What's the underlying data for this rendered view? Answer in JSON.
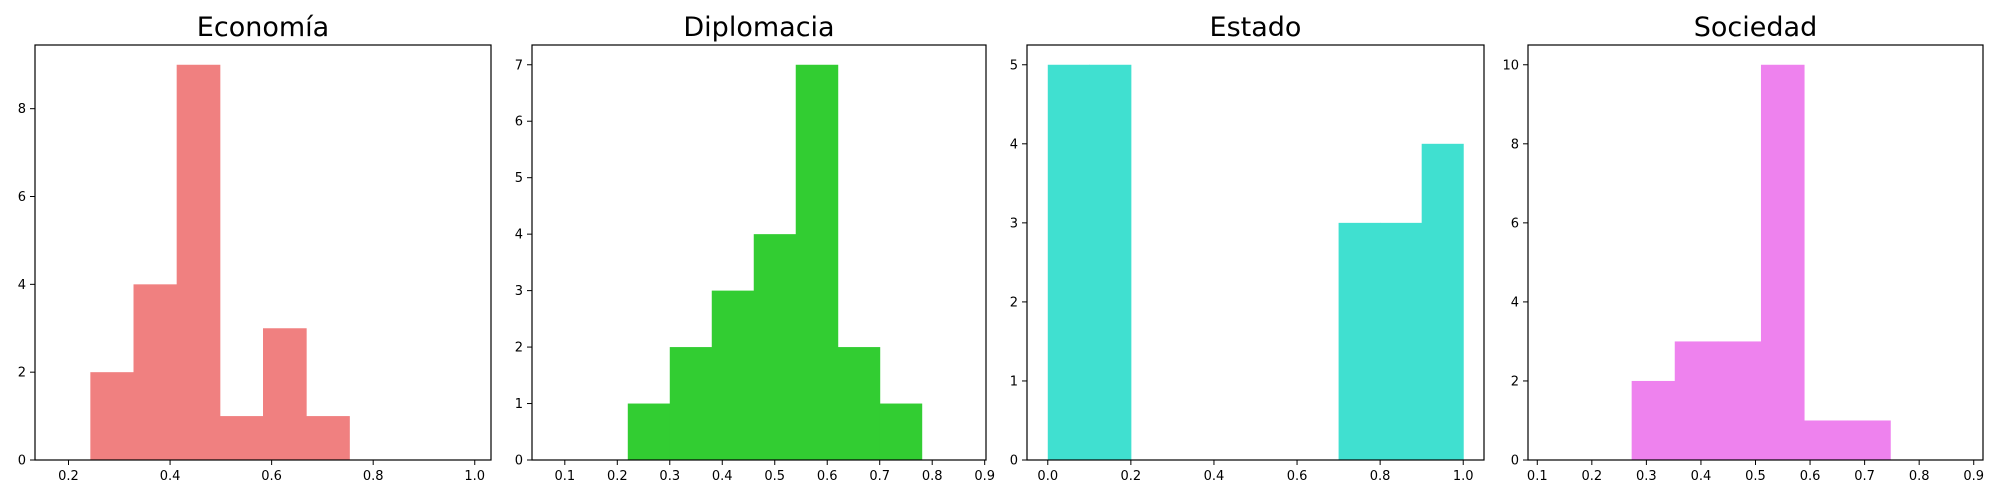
{
  "chart_data": [
    {
      "type": "histogram",
      "title": "Economía",
      "color": "#f08080",
      "xlim": [
        0.134,
        1.032
      ],
      "ylim": [
        0,
        9.45
      ],
      "xticks": [
        0.2,
        0.4,
        0.6,
        0.8,
        1.0
      ],
      "yticks": [
        0,
        2,
        4,
        6,
        8
      ],
      "bin_edges": [
        0.243,
        0.328,
        0.413,
        0.498,
        0.583,
        0.668,
        0.753
      ],
      "counts": [
        2,
        4,
        9,
        1,
        3,
        1
      ]
    },
    {
      "type": "histogram",
      "title": "Diplomacia",
      "color": "#32cd32",
      "xlim": [
        0.0375,
        0.9025
      ],
      "ylim": [
        0,
        7.35
      ],
      "xticks": [
        0.1,
        0.2,
        0.3,
        0.4,
        0.5,
        0.6,
        0.7,
        0.8,
        0.9
      ],
      "yticks": [
        0,
        1,
        2,
        3,
        4,
        5,
        6,
        7
      ],
      "bin_edges": [
        0.22,
        0.3,
        0.38,
        0.46,
        0.54,
        0.62,
        0.7,
        0.78
      ],
      "counts": [
        1,
        2,
        3,
        4,
        7,
        2,
        1
      ]
    },
    {
      "type": "histogram",
      "title": "Estado",
      "color": "#40e0d0",
      "xlim": [
        -0.05,
        1.05
      ],
      "ylim": [
        0,
        5.25
      ],
      "xticks": [
        0.0,
        0.2,
        0.4,
        0.6,
        0.8,
        1.0
      ],
      "yticks": [
        0,
        1,
        2,
        3,
        4,
        5
      ],
      "bin_edges": [
        0.0,
        0.1,
        0.2,
        0.3,
        0.4,
        0.5,
        0.6,
        0.7,
        0.8,
        0.9,
        1.0
      ],
      "counts": [
        5,
        5,
        0,
        0,
        0,
        0,
        0,
        3,
        3,
        4
      ]
    },
    {
      "type": "histogram",
      "title": "Sociedad",
      "color": "#ee82ee",
      "xlim": [
        0.083,
        0.917
      ],
      "ylim": [
        0,
        10.5
      ],
      "xticks": [
        0.1,
        0.2,
        0.3,
        0.4,
        0.5,
        0.6,
        0.7,
        0.8,
        0.9
      ],
      "yticks": [
        0,
        2,
        4,
        6,
        8,
        10
      ],
      "bin_edges": [
        0.273,
        0.352,
        0.431,
        0.51,
        0.589,
        0.668,
        0.747
      ],
      "counts": [
        2,
        3,
        3,
        10,
        1,
        1
      ]
    }
  ]
}
